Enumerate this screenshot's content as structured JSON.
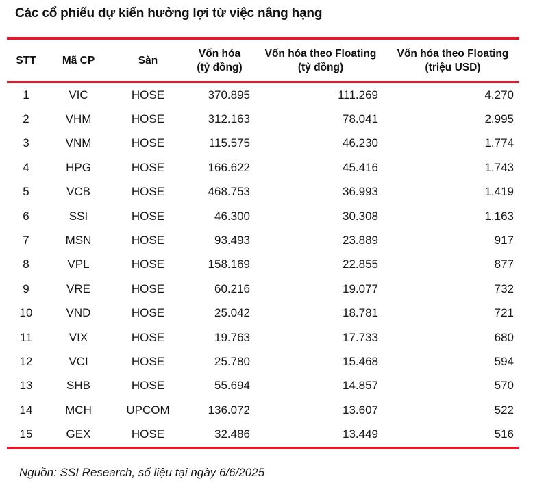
{
  "title": "Các cổ phiếu dự kiến hưởng lợi từ việc nâng hạng",
  "chart_data": {
    "type": "table",
    "title": "Các cổ phiếu dự kiến hưởng lợi từ việc nâng hạng",
    "columns": [
      {
        "line1": "STT",
        "line2": ""
      },
      {
        "line1": "Mã CP",
        "line2": ""
      },
      {
        "line1": "Sàn",
        "line2": ""
      },
      {
        "line1": "Vốn hóa",
        "line2": "(tỷ đồng)"
      },
      {
        "line1": "Vốn hóa theo Floating",
        "line2": "(tỷ đồng)"
      },
      {
        "line1": "Vốn hóa theo Floating",
        "line2": "(triệu USD)"
      }
    ],
    "align": [
      "center",
      "center",
      "center",
      "right",
      "right",
      "right"
    ],
    "rows": [
      [
        "1",
        "VIC",
        "HOSE",
        "370.895",
        "111.269",
        "4.270"
      ],
      [
        "2",
        "VHM",
        "HOSE",
        "312.163",
        "78.041",
        "2.995"
      ],
      [
        "3",
        "VNM",
        "HOSE",
        "115.575",
        "46.230",
        "1.774"
      ],
      [
        "4",
        "HPG",
        "HOSE",
        "166.622",
        "45.416",
        "1.743"
      ],
      [
        "5",
        "VCB",
        "HOSE",
        "468.753",
        "36.993",
        "1.419"
      ],
      [
        "6",
        "SSI",
        "HOSE",
        "46.300",
        "30.308",
        "1.163"
      ],
      [
        "7",
        "MSN",
        "HOSE",
        "93.493",
        "23.889",
        "917"
      ],
      [
        "8",
        "VPL",
        "HOSE",
        "158.169",
        "22.855",
        "877"
      ],
      [
        "9",
        "VRE",
        "HOSE",
        "60.216",
        "19.077",
        "732"
      ],
      [
        "10",
        "VND",
        "HOSE",
        "25.042",
        "18.781",
        "721"
      ],
      [
        "11",
        "VIX",
        "HOSE",
        "19.763",
        "17.733",
        "680"
      ],
      [
        "12",
        "VCI",
        "HOSE",
        "25.780",
        "15.468",
        "594"
      ],
      [
        "13",
        "SHB",
        "HOSE",
        "55.694",
        "14.857",
        "570"
      ],
      [
        "14",
        "MCH",
        "UPCOM",
        "136.072",
        "13.607",
        "522"
      ],
      [
        "15",
        "GEX",
        "HOSE",
        "32.486",
        "13.449",
        "516"
      ]
    ]
  },
  "footer": {
    "source": "Nguồn: SSI Research, số liệu tại ngày 6/6/2025"
  },
  "colors": {
    "accent_red": "#e1192d",
    "text": "#161616"
  }
}
